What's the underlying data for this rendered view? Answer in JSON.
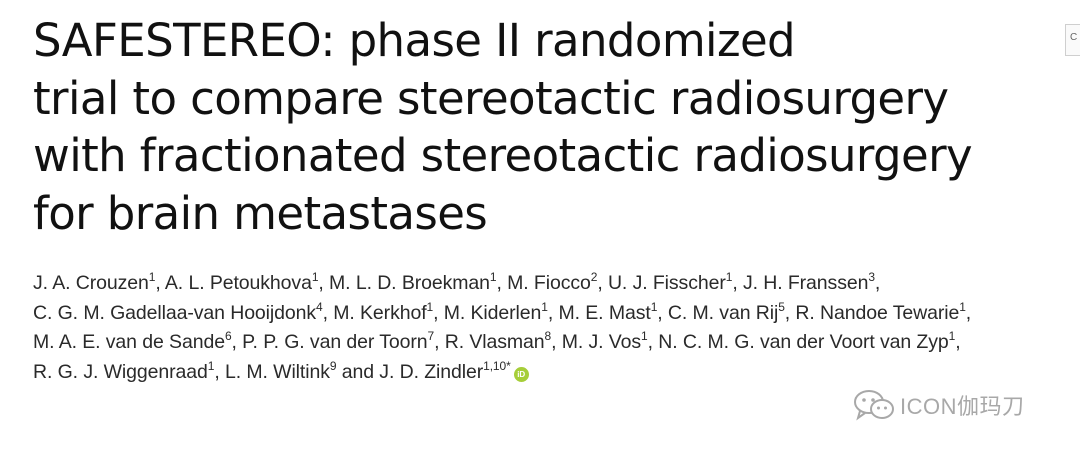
{
  "title_lines": [
    "SAFESTEREO: phase II randomized",
    "trial to compare stereotactic radiosurgery",
    "with fractionated stereotactic radiosurgery",
    "for brain metastases"
  ],
  "author_lines": [
    [
      {
        "t": "J. A. Crouzen"
      },
      {
        "s": "1"
      },
      {
        "t": ", A. L. Petoukhova"
      },
      {
        "s": "1"
      },
      {
        "t": ", M. L. D. Broekman"
      },
      {
        "s": "1"
      },
      {
        "t": ", M. Fiocco"
      },
      {
        "s": "2"
      },
      {
        "t": ", U. J. Fisscher"
      },
      {
        "s": "1"
      },
      {
        "t": ", J. H. Franssen"
      },
      {
        "s": "3"
      },
      {
        "t": ","
      }
    ],
    [
      {
        "t": "C. G. M. Gadellaa-van Hooijdonk"
      },
      {
        "s": "4"
      },
      {
        "t": ", M. Kerkhof"
      },
      {
        "s": "1"
      },
      {
        "t": ", M. Kiderlen"
      },
      {
        "s": "1"
      },
      {
        "t": ", M. E. Mast"
      },
      {
        "s": "1"
      },
      {
        "t": ", C. M. van Rij"
      },
      {
        "s": "5"
      },
      {
        "t": ", R. Nandoe Tewarie"
      },
      {
        "s": "1"
      },
      {
        "t": ","
      }
    ],
    [
      {
        "t": "M. A. E. van de Sande"
      },
      {
        "s": "6"
      },
      {
        "t": ", P. P. G. van der Toorn"
      },
      {
        "s": "7"
      },
      {
        "t": ", R. Vlasman"
      },
      {
        "s": "8"
      },
      {
        "t": ", M. J. Vos"
      },
      {
        "s": "1"
      },
      {
        "t": ", N. C. M. G. van der Voort van Zyp"
      },
      {
        "s": "1"
      },
      {
        "t": ","
      }
    ],
    [
      {
        "t": "R. G. J. Wiggenraad"
      },
      {
        "s": "1"
      },
      {
        "t": ", L. M. Wiltink"
      },
      {
        "s": "9"
      },
      {
        "t": " and J. D. Zindler"
      },
      {
        "s": "1,10*"
      },
      {
        "orcid": "iD"
      }
    ]
  ],
  "edge_box_text": "C",
  "watermark": {
    "icon": "wechat-icon",
    "text": "ICON伽玛刀"
  },
  "colors": {
    "orcid_green": "#a6ce39",
    "text": "#1a1a1a",
    "watermark": "#9a9a9a"
  }
}
